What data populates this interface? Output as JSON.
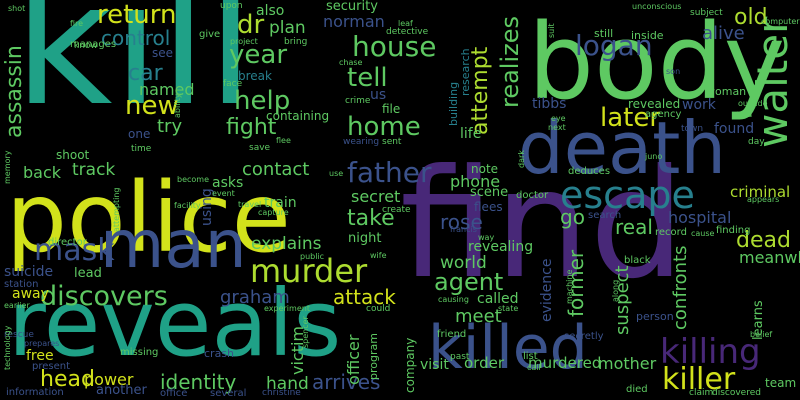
{
  "palette": {
    "background": "#000000",
    "yellow": "#d2e21b",
    "lime": "#addc30",
    "green": "#5ec962",
    "teal": "#1fa187",
    "sea": "#23a983",
    "cyan": "#27808e",
    "steel": "#2c728e",
    "blue": "#3b528b",
    "indigo": "#414487",
    "purple": "#482878",
    "deep": "#440154"
  },
  "words": {
    "kill": "kill",
    "find": "find",
    "police": "police",
    "reveals": "reveals",
    "body": "body",
    "death": "death",
    "man": "man",
    "killed": "killed",
    "murder": "murder",
    "discovers": "discovers",
    "escape": "escape",
    "killing": "killing",
    "killer": "killer",
    "walter": "walter",
    "house": "house",
    "father": "father",
    "return": "return",
    "home": "home",
    "help": "help",
    "tell": "tell",
    "dr": "dr",
    "year": "year",
    "logan": "logan",
    "later": "later",
    "realizes": "realizes",
    "attempt": "attempt",
    "agent": "agent",
    "mask": "mask",
    "new": "new",
    "car": "car",
    "control": "control",
    "fight": "fight",
    "assassin": "assassin",
    "old": "old",
    "alive": "alive",
    "dead": "dead",
    "meanwhile": "meanwhile",
    "identity": "identity",
    "head": "head",
    "power": "power",
    "hand": "hand",
    "arrives": "arrives",
    "attack": "attack",
    "graham": "graham",
    "explains": "explains",
    "contact": "contact",
    "back": "back",
    "track": "track",
    "take": "take",
    "secret": "secret",
    "rose": "rose",
    "world": "world",
    "meet": "meet",
    "former": "former",
    "phone": "phone",
    "go": "go",
    "real": "real",
    "hospital": "hospital",
    "suspect": "suspect",
    "confronts": "confronts",
    "criminal": "criminal",
    "plan": "plan",
    "norman": "norman",
    "named": "named",
    "try": "try",
    "mother": "mother",
    "murdered": "murdered",
    "order": "order",
    "visit": "visit",
    "victim": "victim",
    "officer": "officer",
    "free": "free",
    "away": "away",
    "suicide": "suicide",
    "lead": "lead",
    "another": "another",
    "team": "team",
    "security": "security",
    "also": "also",
    "life": "life",
    "work": "work",
    "found": "found",
    "tibbs": "tibbs",
    "evidence": "evidence",
    "called": "called",
    "revealing": "revealing",
    "scene": "scene",
    "learns": "learns",
    "using": "using",
    "train": "train",
    "asks": "asks",
    "night": "night",
    "us": "us",
    "file": "file",
    "containing": "containing",
    "break": "break",
    "one": "one",
    "see": "see",
    "shoot": "shoot",
    "woman": "woman",
    "revealed": "revealed",
    "note": "note",
    "flees": "flees",
    "company": "company",
    "program": "program",
    "missing": "missing",
    "crash": "crash",
    "research": "research",
    "building": "building",
    "still": "still",
    "inside": "inside",
    "agency": "agency",
    "person": "person",
    "black": "black",
    "finding": "finding",
    "record": "record",
    "search": "search",
    "deduces": "deduces",
    "doctor": "doctor",
    "create": "create",
    "list": "list",
    "past": "past",
    "friend": "friend",
    "secretly": "secretly",
    "station": "station",
    "director": "director",
    "present": "present",
    "information": "information",
    "office": "office",
    "several": "several",
    "claim": "claim",
    "discovered": "discovered",
    "died": "died",
    "bring": "bring",
    "give": "give",
    "face": "face",
    "manages": "manages",
    "know": "know",
    "time": "time",
    "save": "save",
    "sent": "sent",
    "wearing": "wearing",
    "crime": "crime",
    "upon": "upon",
    "detective": "detective",
    "leaf": "leaf",
    "project": "project",
    "chase": "chase",
    "subject": "subject",
    "computer": "computer",
    "son": "son",
    "outside": "outside",
    "town": "town",
    "red": "red",
    "day": "day",
    "eye": "eye",
    "next": "next",
    "juno": "juno",
    "appears": "appears",
    "cause": "cause",
    "way": "way",
    "experiment": "experiment",
    "causing": "causing",
    "could": "could",
    "state": "state",
    "belief": "belief",
    "public": "public",
    "capture": "capture",
    "travel": "travel",
    "event": "event",
    "facility": "facility",
    "become": "become",
    "attempting": "attempting",
    "memory": "memory",
    "earlier": "earlier",
    "rescue": "rescue",
    "prepares": "prepares",
    "use": "use",
    "flee": "flee",
    "ability": "ability",
    "fire": "fire",
    "shot": "shot",
    "unconscious": "unconscious",
    "machine": "machine",
    "wife": "wife",
    "spencer": "spencer",
    "call": "call",
    "christine": "christine",
    "francis": "francis",
    "suit": "suit",
    "dark": "dark",
    "technology": "technology",
    "along": "along"
  }
}
